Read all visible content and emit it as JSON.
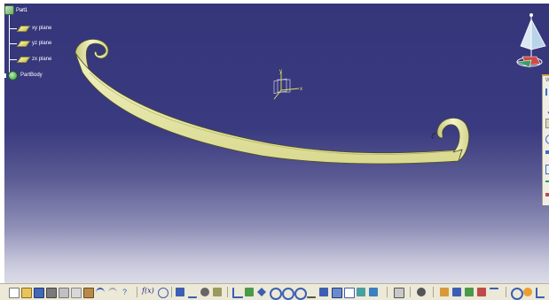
{
  "tree": {
    "root_label": "Part1",
    "items": [
      {
        "label": "xy plane",
        "icon": "plane-icon"
      },
      {
        "label": "yz plane",
        "icon": "plane-icon"
      },
      {
        "label": "zx plane",
        "icon": "plane-icon"
      },
      {
        "label": "PartBody",
        "icon": "part-body-icon"
      }
    ]
  },
  "axis": {
    "y_label": "y",
    "x_label": "x"
  },
  "side_toolbar": {
    "title": "W"
  },
  "bottom_toolbar": {
    "formula_label": "f(x)"
  },
  "colors": {
    "viewport_top": "#35357a",
    "viewport_bottom": "#dcdce8",
    "surface": "#e6e6a8",
    "toolbar_bg": "#ece9d8"
  }
}
